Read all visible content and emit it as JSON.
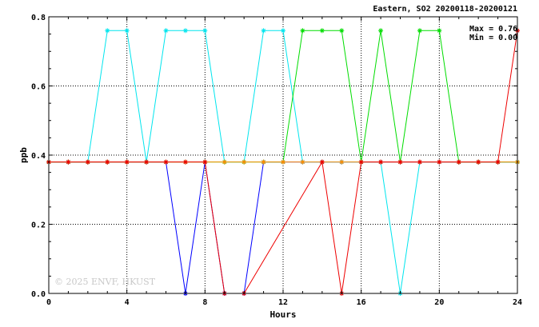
{
  "chart_data": {
    "type": "line",
    "title": "Eastern, SO2 20200118-20200121",
    "xlabel": "Hours",
    "ylabel": "ppb",
    "xlim": [
      0,
      24
    ],
    "ylim": [
      0,
      0.8
    ],
    "x_ticks": [
      0,
      4,
      8,
      12,
      16,
      20,
      24
    ],
    "y_ticks": [
      "0.0",
      "0.2",
      "0.4",
      "0.6",
      "0.8"
    ],
    "grid": true,
    "stats": {
      "max": "Max = 0.76",
      "min": "Min = 0.00"
    },
    "watermark": "© 2025  ENVF, HKUST",
    "x": [
      0,
      1,
      2,
      3,
      4,
      5,
      6,
      7,
      8,
      9,
      10,
      11,
      12,
      13,
      14,
      15,
      16,
      17,
      18,
      19,
      20,
      21,
      22,
      23,
      24
    ],
    "series": [
      {
        "color": "#0000ff",
        "values": [
          0.38,
          0.38,
          0.38,
          0.38,
          0.38,
          0.38,
          0.38,
          0.0,
          0.38,
          0.0,
          0.0,
          0.38,
          0.38,
          0.38,
          0.38,
          0.38,
          0.38,
          0.38,
          0.38,
          0.38,
          0.38,
          0.38,
          0.38,
          0.38,
          0.38
        ]
      },
      {
        "color": "#00e5ee",
        "values": [
          0.38,
          0.38,
          0.38,
          0.76,
          0.76,
          0.38,
          0.76,
          0.76,
          0.76,
          0.38,
          0.38,
          0.76,
          0.76,
          0.38,
          0.38,
          0.38,
          0.38,
          0.38,
          0.0,
          0.38,
          0.38,
          0.38,
          0.38,
          0.38,
          0.38
        ]
      },
      {
        "color": "#00dd00",
        "values": [
          0.38,
          0.38,
          0.38,
          0.38,
          0.38,
          0.38,
          0.38,
          0.38,
          0.38,
          0.38,
          0.38,
          0.38,
          0.38,
          0.76,
          0.76,
          0.76,
          0.38,
          0.76,
          0.38,
          0.76,
          0.76,
          0.38,
          0.38,
          0.38,
          0.38
        ]
      },
      {
        "color": "#ff8c00",
        "values": [
          0.38,
          0.38,
          0.38,
          0.38,
          0.38,
          0.38,
          0.38,
          0.38,
          0.38,
          0.38,
          0.38,
          0.38,
          0.38,
          0.38,
          0.38,
          0.38,
          0.38,
          0.38,
          0.38,
          0.38,
          0.38,
          0.38,
          0.38,
          0.38,
          0.38
        ]
      },
      {
        "color": "#ee0000",
        "values": [
          0.38,
          0.38,
          0.38,
          0.38,
          0.38,
          0.38,
          0.38,
          0.38,
          0.38,
          0.0,
          0.0,
          null,
          null,
          null,
          0.38,
          0.0,
          0.38,
          0.38,
          0.38,
          0.38,
          0.38,
          0.38,
          0.38,
          0.38,
          0.76
        ]
      }
    ]
  }
}
